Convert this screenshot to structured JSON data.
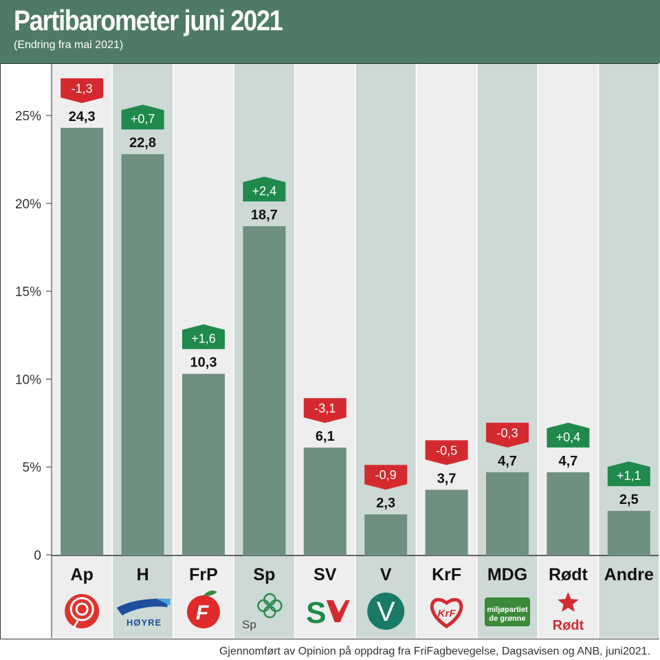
{
  "title": "Partibarometer juni 2021",
  "subtitle": "(Endring fra mai 2021)",
  "footer": "Gjennomført av Opinion på oppdrag fra FriFagbevegelse, Dagsavisen og ANB, juni2021.",
  "colors": {
    "header": "#4f7b66",
    "bar": "#6f8f80",
    "band_light": "#eeeeee",
    "band_dark": "#ccd9d5",
    "positive": "#1f8a4c",
    "negative": "#d42a2f"
  },
  "chart_data": {
    "type": "bar",
    "categories": [
      "Ap",
      "H",
      "FrP",
      "Sp",
      "SV",
      "V",
      "KrF",
      "MDG",
      "Rødt",
      "Andre"
    ],
    "values": [
      24.3,
      22.8,
      10.3,
      18.7,
      6.1,
      2.3,
      3.7,
      4.7,
      4.7,
      2.5
    ],
    "value_labels": [
      "24,3",
      "22,8",
      "10,3",
      "18,7",
      "6,1",
      "2,3",
      "3,7",
      "4,7",
      "4,7",
      "2,5"
    ],
    "changes": [
      "-1,3",
      "+0,7",
      "+1,6",
      "+2,4",
      "-3,1",
      "-0,9",
      "-0,5",
      "-0,3",
      "+0,4",
      "+1,1"
    ],
    "change_values": [
      -1.3,
      0.7,
      1.6,
      2.4,
      -3.1,
      -0.9,
      -0.5,
      -0.3,
      0.4,
      1.1
    ],
    "yticks": [
      0,
      5,
      10,
      15,
      20,
      25
    ],
    "ytick_labels": [
      "0",
      "5%",
      "10%",
      "15%",
      "20%",
      "25%"
    ],
    "ylim": [
      0,
      25
    ],
    "logos": [
      {
        "name": "ap-rose-logo"
      },
      {
        "name": "hoyre-logo",
        "text": "HØYRE"
      },
      {
        "name": "frp-apple-logo",
        "text": "F"
      },
      {
        "name": "sp-clover-logo",
        "text": "Sp"
      },
      {
        "name": "sv-logo",
        "text": "S"
      },
      {
        "name": "venstre-logo",
        "text": "V"
      },
      {
        "name": "krf-heart-logo",
        "text": "KrF"
      },
      {
        "name": "mdg-logo",
        "text": "miljøpartiet de grønne"
      },
      {
        "name": "rodt-star-logo",
        "text": "Rødt"
      },
      {
        "name": "andre-blank"
      }
    ]
  }
}
